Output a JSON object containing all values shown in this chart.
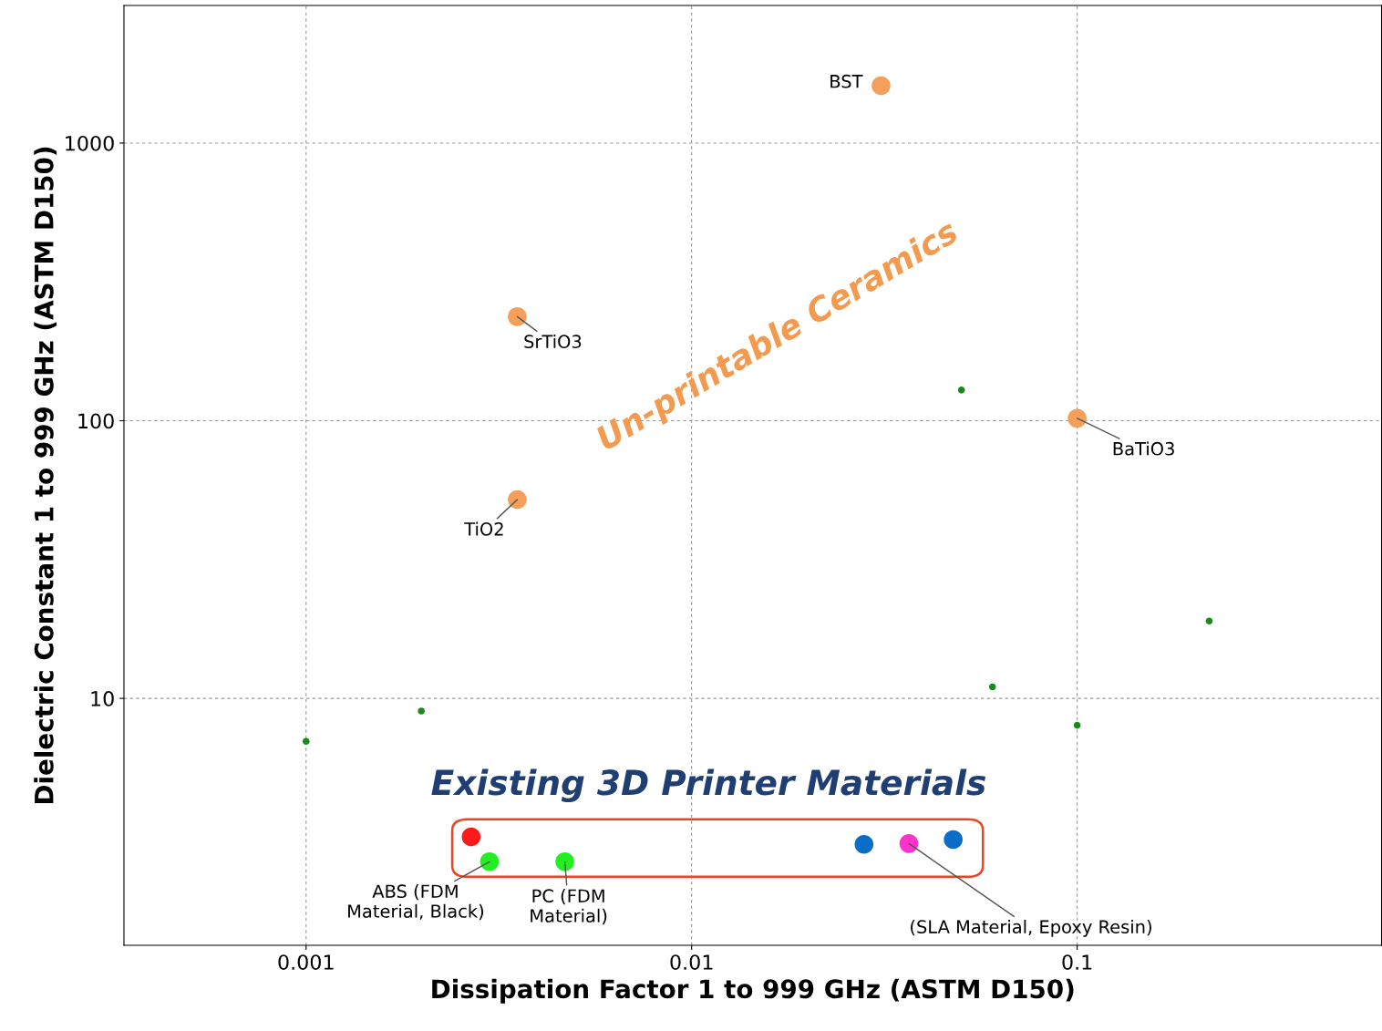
{
  "chart_data": {
    "type": "scatter",
    "xlabel": "Dissipation Factor 1 to 999 GHz (ASTM D150)",
    "ylabel": "Dielectric Constant 1 to 999 GHz (ASTM D150)",
    "log": "xy",
    "xlim": [
      0.000337,
      0.616
    ],
    "ylim": [
      1.29,
      3130
    ],
    "xticks": [
      0.001,
      0.01,
      0.1
    ],
    "yticks": [
      10,
      100,
      1000
    ],
    "grid": true,
    "marker": "circle",
    "series": [
      {
        "color": "#f4a05a",
        "x": [
          0.031,
          0.00353,
          0.00353,
          0.1
        ],
        "values": [
          1610,
          237,
          52,
          102
        ]
      },
      {
        "color": "#1a8a1a",
        "x": [
          0.001,
          0.00199,
          0.0501,
          0.0603,
          0.1,
          0.22
        ],
        "values": [
          7.0,
          9.0,
          129,
          11.0,
          8.0,
          19.0
        ]
      },
      {
        "colors": [
          "#ff1a1a",
          "#22ee22",
          "#22ee22",
          "#0a6ec8",
          "#ff33cc",
          "#0a6ec8"
        ],
        "x": [
          0.00268,
          0.00299,
          0.00469,
          0.028,
          0.0366,
          0.0477
        ],
        "values": [
          3.17,
          2.58,
          2.58,
          2.98,
          3.0,
          3.1
        ]
      }
    ],
    "annotations": [
      "Un-printable Ceramics",
      "Existing 3D Printer Materials",
      {
        "text": "BST",
        "x": 0.031,
        "y": 1610
      },
      {
        "text": "SrTiO3",
        "x": 0.00353,
        "y": 237
      },
      {
        "text": "TiO2",
        "x": 0.00353,
        "y": 52
      },
      {
        "text": "BaTiO3",
        "x": 0.1,
        "y": 102
      },
      {
        "text": "ABS (FDM\nMaterial, Black)",
        "x": 0.00299,
        "y": 2.58
      },
      {
        "text": "PC (FDM\nMaterial)",
        "x": 0.00469,
        "y": 2.58
      },
      {
        "text": "(SLA Material, Epoxy Resin)",
        "x": 0.0366,
        "y": 3.0
      }
    ]
  }
}
